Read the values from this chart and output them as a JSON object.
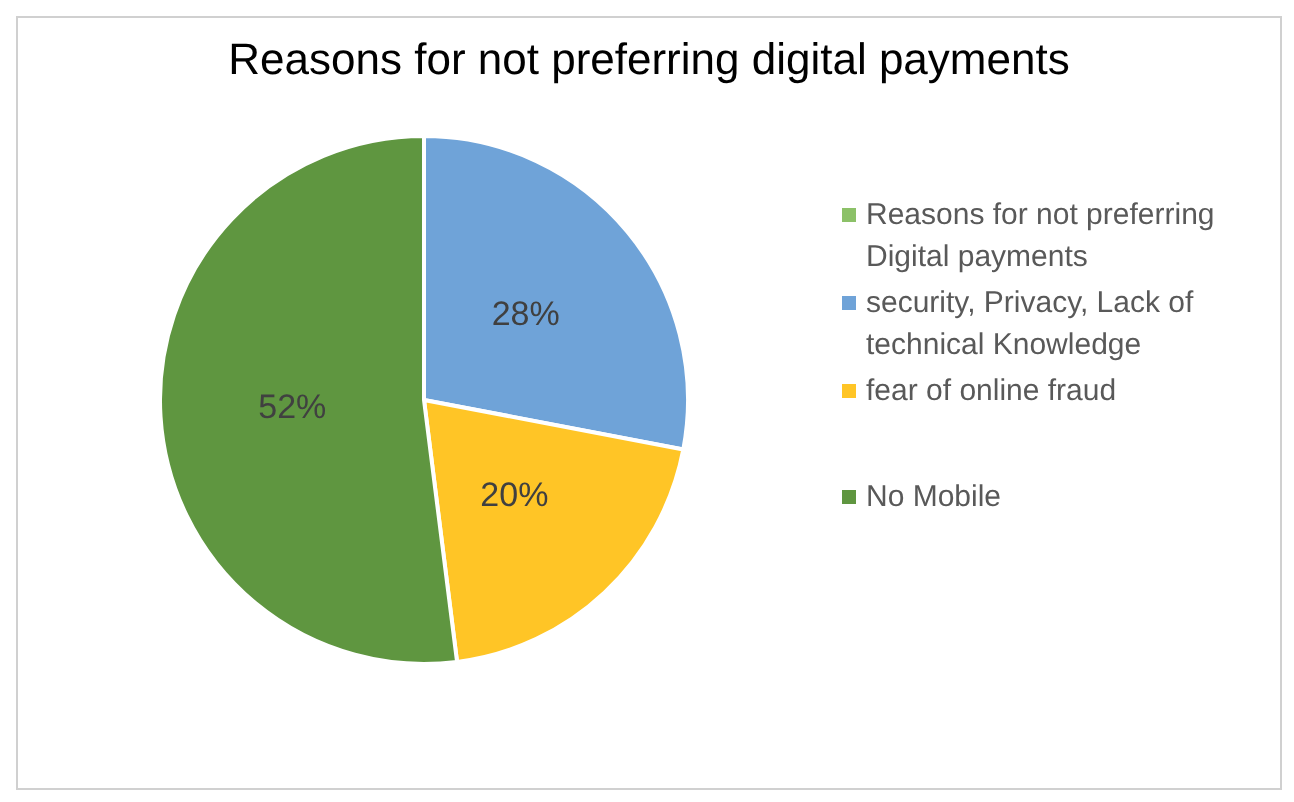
{
  "chart_data": {
    "type": "pie",
    "title": "Reasons for not preferring digital payments",
    "categories": [
      "Reasons for not preferring Digital payments",
      "security, Privacy, Lack of technical Knowledge",
      "fear of online fraud",
      "No Mobile"
    ],
    "values": [
      0,
      28,
      20,
      52
    ],
    "colors": [
      "#8cc168",
      "#6fa3d8",
      "#ffc526",
      "#5f9640"
    ],
    "value_labels": [
      null,
      "28%",
      "20%",
      "52%"
    ],
    "legend": "right"
  }
}
